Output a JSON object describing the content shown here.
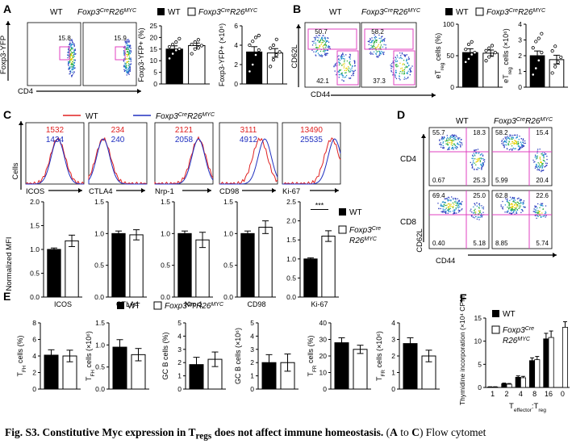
{
  "panels": {
    "A": {
      "letter": "A",
      "legend": {
        "wt": "WT",
        "ko_main": "Foxp3",
        "ko_sup1": "Cre",
        "ko_mid": "R26",
        "ko_sup2": "MYC"
      },
      "flow": {
        "y_label": "Foxp3-YFP",
        "x_label": "CD4",
        "gates": [
          "15.8",
          "15.9"
        ]
      },
      "chart_data": [
        {
          "type": "bar",
          "categories": [
            "WT",
            "Foxp3CreR26MYC"
          ],
          "values": [
            15.0,
            16.5
          ],
          "errors": [
            1.4,
            1.1
          ],
          "points": [
            [
              11,
              13,
              14.5,
              15,
              16,
              17,
              18,
              19.5
            ],
            [
              13,
              15,
              15.5,
              16.5,
              17,
              18,
              19
            ]
          ],
          "ylabel": "Foxp3-YFP+ (%)",
          "ylim": [
            0,
            25
          ],
          "yticks": [
            "0",
            "5",
            "10",
            "15",
            "20",
            "25"
          ]
        },
        {
          "type": "bar",
          "categories": [
            "WT",
            "Foxp3CreR26MYC"
          ],
          "values": [
            3.3,
            3.2
          ],
          "errors": [
            0.55,
            0.45
          ],
          "points": [
            [
              1.3,
              2.0,
              3.0,
              3.5,
              4.0,
              4.4,
              4.8,
              5.0
            ],
            [
              1.8,
              2.5,
              3.0,
              3.3,
              3.7,
              4.0,
              4.6
            ]
          ],
          "ylabel": "Foxp3-YFP+ (×10⁶)",
          "ylim": [
            0,
            6
          ],
          "yticks": [
            "0",
            "2",
            "4",
            "6"
          ]
        }
      ]
    },
    "B": {
      "letter": "B",
      "legend": {
        "wt": "WT",
        "ko_main": "Foxp3",
        "ko_sup1": "Cre",
        "ko_mid": "R26",
        "ko_sup2": "MYC"
      },
      "flow": {
        "y_label": "CD62L",
        "x_label": "CD44",
        "gates_top": [
          "50.7",
          "58.2"
        ],
        "gates_bottom": [
          "42.1",
          "37.3"
        ]
      },
      "chart_data": [
        {
          "type": "bar",
          "categories": [
            "WT",
            "Foxp3CreR26MYC"
          ],
          "values": [
            55,
            54
          ],
          "errors": [
            6,
            5
          ],
          "points": [
            [
              40,
              45,
              52,
              55,
              60,
              68,
              72
            ],
            [
              42,
              48,
              52,
              55,
              58,
              62,
              66
            ]
          ],
          "ylabel": "eTreg cells (%)",
          "ylim": [
            0,
            100
          ],
          "yticks": [
            "0",
            "50",
            "100"
          ]
        },
        {
          "type": "bar",
          "categories": [
            "WT",
            "Foxp3CreR26MYC"
          ],
          "values": [
            2.0,
            1.75
          ],
          "errors": [
            0.3,
            0.28
          ],
          "points": [
            [
              0.8,
              1.2,
              1.7,
              2.2,
              2.5,
              2.9,
              3.1,
              3.4
            ],
            [
              0.9,
              1.3,
              1.6,
              1.9,
              2.3,
              2.6
            ]
          ],
          "ylabel": "eTreg cells (×10⁶)",
          "ylim": [
            0,
            4
          ],
          "yticks": [
            "0",
            "1",
            "2",
            "3",
            "4"
          ]
        }
      ]
    },
    "C": {
      "letter": "C",
      "legend": {
        "wt": "WT",
        "ko_main": "Foxp3",
        "ko_sup1": "Cre",
        "ko_mid": "R26",
        "ko_sup2": "MYC"
      },
      "histograms": [
        {
          "marker": "ICOS",
          "mfi_wt": "1532",
          "mfi_ko": "1434"
        },
        {
          "marker": "CTLA4",
          "mfi_wt": "234",
          "mfi_ko": "240"
        },
        {
          "marker": "Nrp-1",
          "mfi_wt": "2121",
          "mfi_ko": "2058"
        },
        {
          "marker": "CD98",
          "mfi_wt": "3111",
          "mfi_ko": "4912"
        },
        {
          "marker": "Ki-67",
          "mfi_wt": "13490",
          "mfi_ko": "25535"
        }
      ],
      "hist_y_label": "Cells",
      "mfi_y_label": "Normalized MFI",
      "chart_data": [
        {
          "type": "bar",
          "xlabel": "ICOS",
          "values": [
            1.0,
            1.18
          ],
          "errors": [
            0.03,
            0.12
          ],
          "ylim": [
            0,
            2.0
          ],
          "yticks": [
            "0.0",
            "0.5",
            "1.0",
            "1.5",
            "2.0"
          ]
        },
        {
          "type": "bar",
          "xlabel": "CTLA4",
          "values": [
            1.0,
            0.98
          ],
          "errors": [
            0.04,
            0.08
          ],
          "ylim": [
            0,
            1.5
          ],
          "yticks": [
            "0.0",
            "0.5",
            "1.0",
            "1.5"
          ]
        },
        {
          "type": "bar",
          "xlabel": "Nrp-1",
          "values": [
            1.0,
            0.9
          ],
          "errors": [
            0.04,
            0.12
          ],
          "ylim": [
            0,
            1.5
          ],
          "yticks": [
            "0.0",
            "0.5",
            "1.0",
            "1.5"
          ]
        },
        {
          "type": "bar",
          "xlabel": "CD98",
          "values": [
            1.0,
            1.1
          ],
          "errors": [
            0.04,
            0.1
          ],
          "ylim": [
            0,
            1.5
          ],
          "yticks": [
            "0.0",
            "0.5",
            "1.0",
            "1.5"
          ]
        },
        {
          "type": "bar",
          "xlabel": "Ki-67",
          "values": [
            1.0,
            1.6
          ],
          "errors": [
            0.03,
            0.14
          ],
          "ylim": [
            0,
            2.5
          ],
          "yticks": [
            "0.0",
            "0.5",
            "1.0",
            "1.5",
            "2.0",
            "2.5"
          ],
          "annotation": "***"
        }
      ],
      "bar_legend": {
        "wt": "WT",
        "ko_l1_main": "Foxp3",
        "ko_l1_sup": "Cre",
        "ko_l2_main": "R26",
        "ko_l2_sup": "MYC"
      }
    },
    "D": {
      "letter": "D",
      "legend": {
        "wt": "WT",
        "ko_main": "Foxp3",
        "ko_sup1": "Cre",
        "ko_mid": "R26",
        "ko_sup2": "MYC"
      },
      "y_label": "CD62L",
      "x_label": "CD44",
      "rows": [
        {
          "label": "CD4",
          "wt": [
            "55.7",
            "18.3",
            "0.67",
            "25.3"
          ],
          "ko": [
            "58.2",
            "15.4",
            "5.99",
            "20.4"
          ]
        },
        {
          "label": "CD8",
          "wt": [
            "69.4",
            "25.0",
            "0.40",
            "5.18"
          ],
          "ko": [
            "62.8",
            "22.6",
            "8.85",
            "5.74"
          ]
        }
      ]
    },
    "E": {
      "letter": "E",
      "legend": {
        "wt": "WT",
        "ko_main": "Foxp3",
        "ko_sup1": "Cre",
        "ko_mid": "R26",
        "ko_sup2": "MYC"
      },
      "chart_data": [
        {
          "type": "bar",
          "ylabel": "TFH cells (%)",
          "values": [
            4.1,
            4.0
          ],
          "errors": [
            0.65,
            0.7
          ],
          "ylim": [
            0,
            8
          ],
          "yticks": [
            "0",
            "2",
            "4",
            "6",
            "8"
          ]
        },
        {
          "type": "bar",
          "ylabel": "TFH cells (×10⁶)",
          "values": [
            0.95,
            0.78
          ],
          "errors": [
            0.17,
            0.14
          ],
          "ylim": [
            0,
            1.5
          ],
          "yticks": [
            "0.0",
            "0.5",
            "1.0",
            "1.5"
          ]
        },
        {
          "type": "bar",
          "ylabel": "GC B cells (%)",
          "values": [
            1.85,
            2.25
          ],
          "errors": [
            0.55,
            0.55
          ],
          "ylim": [
            0,
            5
          ],
          "yticks": [
            "0",
            "1",
            "2",
            "3",
            "4",
            "5"
          ]
        },
        {
          "type": "bar",
          "ylabel": "GC B cells (×10⁶)",
          "values": [
            2.0,
            2.0
          ],
          "errors": [
            0.6,
            0.65
          ],
          "ylim": [
            0,
            5
          ],
          "yticks": [
            "0",
            "1",
            "2",
            "3",
            "4",
            "5"
          ]
        },
        {
          "type": "bar",
          "ylabel": "TFR cells (%)",
          "values": [
            28,
            24
          ],
          "errors": [
            3,
            2.5
          ],
          "ylim": [
            0,
            40
          ],
          "yticks": [
            "0",
            "10",
            "20",
            "30",
            "40"
          ]
        },
        {
          "type": "bar",
          "ylabel": "TFR cells (×10⁶)",
          "values": [
            2.75,
            2.0
          ],
          "errors": [
            0.35,
            0.35
          ],
          "ylim": [
            0,
            4
          ],
          "yticks": [
            "0",
            "1",
            "2",
            "3",
            "4"
          ]
        }
      ]
    },
    "F": {
      "letter": "F",
      "legend": {
        "wt": "WT",
        "ko_l1_main": "Foxp3",
        "ko_l1_sup": "Cre",
        "ko_l2_main": "R26",
        "ko_l2_sup": "MYC"
      },
      "chart_data": {
        "type": "bar",
        "categories": [
          "1",
          "2",
          "4",
          "8",
          "16",
          "0"
        ],
        "series": [
          {
            "name": "WT",
            "values": [
              0.1,
              0.8,
              2.2,
              5.8,
              10.5,
              0
            ],
            "errors": [
              0.05,
              0.15,
              0.3,
              0.6,
              1.2,
              0
            ]
          },
          {
            "name": "Foxp3CreR26MYC",
            "values": [
              0.1,
              0.7,
              2.1,
              6.0,
              10.8,
              13
            ],
            "errors": [
              0.05,
              0.15,
              0.3,
              0.7,
              1.4,
              1.2
            ]
          }
        ],
        "ylabel": "Thymidine incorporation (×10⁴ CPM)",
        "ylim": [
          0,
          15
        ],
        "yticks": [
          "0",
          "5",
          "10",
          "15"
        ],
        "xlabel_main": "T",
        "xlabel_sub1": "effector",
        "xlabel_mid": ":T",
        "xlabel_sub2": "reg"
      }
    }
  },
  "caption": {
    "bold_part1": "Fig. S3. Constitutive Myc expression in T",
    "bold_sub": "regs",
    "bold_part2": " does not affect immune homeostasis.",
    "normal_part1": " (",
    "bold_a": "A",
    "normal_to": " to ",
    "bold_c": "C",
    "normal_part2": ") Flow cytomet"
  }
}
